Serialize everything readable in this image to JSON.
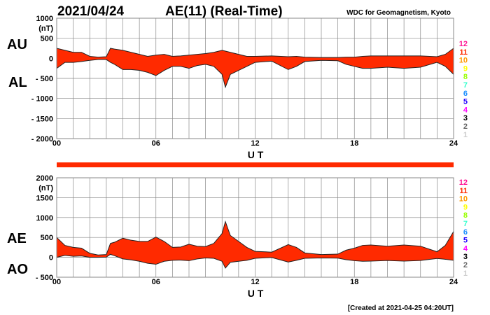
{
  "header": {
    "date": "2021/04/24",
    "title": "AE(11) (Real-Time)",
    "source": "WDC for Geomagnetism, Kyoto"
  },
  "footer": {
    "created": "[Created at 2021-04-25 04:20UT]"
  },
  "legend": {
    "station_counts": [
      "12",
      "11",
      "10",
      "9",
      "8",
      "7",
      "6",
      "5",
      "4",
      "3",
      "2",
      "1"
    ],
    "colors": [
      "#ff1493",
      "#ff2a00",
      "#ff9900",
      "#ffff00",
      "#99ff00",
      "#33ffcc",
      "#1e90ff",
      "#2200ff",
      "#ff00ff",
      "#000000",
      "#666666",
      "#cccccc"
    ]
  },
  "fill_color": "#ff2a00",
  "chart_data": [
    {
      "type": "area",
      "title": "AU / AL",
      "series_labels": [
        "AU",
        "AL"
      ],
      "unit": "(nT)",
      "xlabel": "U T",
      "xlim": [
        0,
        24
      ],
      "xticks": [
        "00",
        "06",
        "12",
        "18",
        "24"
      ],
      "ylim": [
        -2000,
        1000
      ],
      "yticks": [
        {
          "v": 1000,
          "l": "1000"
        },
        {
          "v": 500,
          "l": "500"
        },
        {
          "v": 0,
          "l": "0"
        },
        {
          "v": -500,
          "l": "- 500"
        },
        {
          "v": -1000,
          "l": "- 1000"
        },
        {
          "v": -1500,
          "l": "- 1500"
        },
        {
          "v": -2000,
          "l": "- 2000"
        }
      ],
      "grid": true,
      "x": [
        0,
        0.5,
        1,
        1.5,
        2,
        2.5,
        3,
        3.25,
        3.5,
        4,
        4.5,
        5,
        5.5,
        6,
        6.5,
        7,
        7.5,
        8,
        8.5,
        9,
        9.5,
        10,
        10.2,
        10.5,
        11,
        11.5,
        12,
        13,
        14,
        14.5,
        15,
        16,
        17,
        17.5,
        18,
        18.5,
        19,
        20,
        21,
        22,
        23,
        23.5,
        24
      ],
      "upper": [
        250,
        200,
        150,
        150,
        50,
        30,
        40,
        250,
        230,
        200,
        150,
        100,
        50,
        80,
        100,
        50,
        60,
        80,
        100,
        120,
        150,
        200,
        180,
        150,
        100,
        50,
        50,
        60,
        40,
        50,
        30,
        20,
        20,
        30,
        30,
        50,
        60,
        60,
        60,
        60,
        40,
        100,
        250
      ],
      "lower": [
        -250,
        -100,
        -100,
        -80,
        -50,
        -30,
        -30,
        -100,
        -150,
        -280,
        -280,
        -300,
        -350,
        -430,
        -300,
        -200,
        -200,
        -250,
        -180,
        -150,
        -200,
        -400,
        -720,
        -400,
        -300,
        -200,
        -100,
        -70,
        -280,
        -200,
        -80,
        -50,
        -60,
        -150,
        -200,
        -250,
        -250,
        -220,
        -250,
        -220,
        -100,
        -200,
        -400
      ]
    },
    {
      "type": "area",
      "title": "AE / AO",
      "series_labels": [
        "AE",
        "AO"
      ],
      "unit": "(nT)",
      "xlabel": "U T",
      "xlim": [
        0,
        24
      ],
      "xticks": [
        "00",
        "06",
        "12",
        "18",
        "24"
      ],
      "ylim": [
        -500,
        2000
      ],
      "yticks": [
        {
          "v": 2000,
          "l": "2000"
        },
        {
          "v": 1500,
          "l": "1500"
        },
        {
          "v": 1000,
          "l": "1000"
        },
        {
          "v": 500,
          "l": "500"
        },
        {
          "v": 0,
          "l": "0"
        },
        {
          "v": -500,
          "l": "- 500"
        }
      ],
      "grid": true,
      "x": [
        0,
        0.5,
        1,
        1.5,
        2,
        2.5,
        3,
        3.25,
        3.5,
        4,
        4.5,
        5,
        5.5,
        6,
        6.5,
        7,
        7.5,
        8,
        8.5,
        9,
        9.5,
        10,
        10.2,
        10.5,
        11,
        11.5,
        12,
        13,
        14,
        14.5,
        15,
        16,
        17,
        17.5,
        18,
        18.5,
        19,
        20,
        21,
        22,
        23,
        23.5,
        24
      ],
      "upper": [
        500,
        300,
        250,
        230,
        100,
        60,
        70,
        350,
        380,
        480,
        430,
        400,
        400,
        510,
        400,
        250,
        260,
        330,
        280,
        270,
        350,
        600,
        900,
        550,
        400,
        250,
        150,
        130,
        320,
        250,
        110,
        70,
        80,
        180,
        230,
        300,
        310,
        280,
        310,
        280,
        140,
        300,
        650
      ],
      "lower": [
        0,
        50,
        25,
        35,
        0,
        0,
        5,
        75,
        40,
        -40,
        -65,
        -100,
        -150,
        -175,
        -100,
        -75,
        -70,
        -85,
        -40,
        -15,
        -25,
        -100,
        -270,
        -125,
        -100,
        -75,
        -25,
        -5,
        -120,
        -75,
        -25,
        -15,
        -20,
        -60,
        -85,
        -100,
        -95,
        -80,
        -95,
        -80,
        -30,
        -50,
        -75
      ]
    }
  ]
}
